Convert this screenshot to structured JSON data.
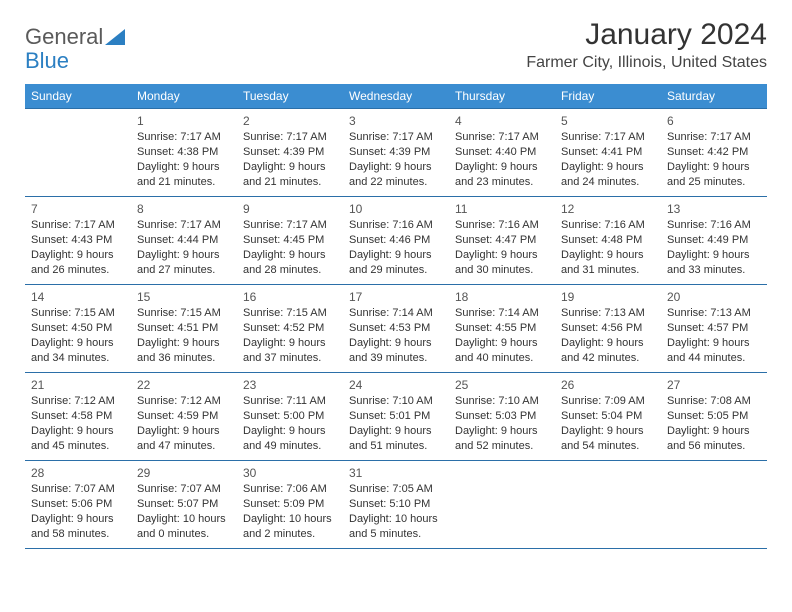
{
  "logo": {
    "text1": "General",
    "text2": "Blue"
  },
  "title": "January 2024",
  "location": "Farmer City, Illinois, United States",
  "colors": {
    "header_bg": "#3b8dd1",
    "header_text": "#ffffff",
    "cell_border": "#2b6fa8",
    "text": "#333333",
    "logo_gray": "#5a5a5a",
    "logo_blue": "#2b7fc2"
  },
  "weekdays": [
    "Sunday",
    "Monday",
    "Tuesday",
    "Wednesday",
    "Thursday",
    "Friday",
    "Saturday"
  ],
  "weeks": [
    [
      null,
      {
        "n": "1",
        "sr": "Sunrise: 7:17 AM",
        "ss": "Sunset: 4:38 PM",
        "d1": "Daylight: 9 hours",
        "d2": "and 21 minutes."
      },
      {
        "n": "2",
        "sr": "Sunrise: 7:17 AM",
        "ss": "Sunset: 4:39 PM",
        "d1": "Daylight: 9 hours",
        "d2": "and 21 minutes."
      },
      {
        "n": "3",
        "sr": "Sunrise: 7:17 AM",
        "ss": "Sunset: 4:39 PM",
        "d1": "Daylight: 9 hours",
        "d2": "and 22 minutes."
      },
      {
        "n": "4",
        "sr": "Sunrise: 7:17 AM",
        "ss": "Sunset: 4:40 PM",
        "d1": "Daylight: 9 hours",
        "d2": "and 23 minutes."
      },
      {
        "n": "5",
        "sr": "Sunrise: 7:17 AM",
        "ss": "Sunset: 4:41 PM",
        "d1": "Daylight: 9 hours",
        "d2": "and 24 minutes."
      },
      {
        "n": "6",
        "sr": "Sunrise: 7:17 AM",
        "ss": "Sunset: 4:42 PM",
        "d1": "Daylight: 9 hours",
        "d2": "and 25 minutes."
      }
    ],
    [
      {
        "n": "7",
        "sr": "Sunrise: 7:17 AM",
        "ss": "Sunset: 4:43 PM",
        "d1": "Daylight: 9 hours",
        "d2": "and 26 minutes."
      },
      {
        "n": "8",
        "sr": "Sunrise: 7:17 AM",
        "ss": "Sunset: 4:44 PM",
        "d1": "Daylight: 9 hours",
        "d2": "and 27 minutes."
      },
      {
        "n": "9",
        "sr": "Sunrise: 7:17 AM",
        "ss": "Sunset: 4:45 PM",
        "d1": "Daylight: 9 hours",
        "d2": "and 28 minutes."
      },
      {
        "n": "10",
        "sr": "Sunrise: 7:16 AM",
        "ss": "Sunset: 4:46 PM",
        "d1": "Daylight: 9 hours",
        "d2": "and 29 minutes."
      },
      {
        "n": "11",
        "sr": "Sunrise: 7:16 AM",
        "ss": "Sunset: 4:47 PM",
        "d1": "Daylight: 9 hours",
        "d2": "and 30 minutes."
      },
      {
        "n": "12",
        "sr": "Sunrise: 7:16 AM",
        "ss": "Sunset: 4:48 PM",
        "d1": "Daylight: 9 hours",
        "d2": "and 31 minutes."
      },
      {
        "n": "13",
        "sr": "Sunrise: 7:16 AM",
        "ss": "Sunset: 4:49 PM",
        "d1": "Daylight: 9 hours",
        "d2": "and 33 minutes."
      }
    ],
    [
      {
        "n": "14",
        "sr": "Sunrise: 7:15 AM",
        "ss": "Sunset: 4:50 PM",
        "d1": "Daylight: 9 hours",
        "d2": "and 34 minutes."
      },
      {
        "n": "15",
        "sr": "Sunrise: 7:15 AM",
        "ss": "Sunset: 4:51 PM",
        "d1": "Daylight: 9 hours",
        "d2": "and 36 minutes."
      },
      {
        "n": "16",
        "sr": "Sunrise: 7:15 AM",
        "ss": "Sunset: 4:52 PM",
        "d1": "Daylight: 9 hours",
        "d2": "and 37 minutes."
      },
      {
        "n": "17",
        "sr": "Sunrise: 7:14 AM",
        "ss": "Sunset: 4:53 PM",
        "d1": "Daylight: 9 hours",
        "d2": "and 39 minutes."
      },
      {
        "n": "18",
        "sr": "Sunrise: 7:14 AM",
        "ss": "Sunset: 4:55 PM",
        "d1": "Daylight: 9 hours",
        "d2": "and 40 minutes."
      },
      {
        "n": "19",
        "sr": "Sunrise: 7:13 AM",
        "ss": "Sunset: 4:56 PM",
        "d1": "Daylight: 9 hours",
        "d2": "and 42 minutes."
      },
      {
        "n": "20",
        "sr": "Sunrise: 7:13 AM",
        "ss": "Sunset: 4:57 PM",
        "d1": "Daylight: 9 hours",
        "d2": "and 44 minutes."
      }
    ],
    [
      {
        "n": "21",
        "sr": "Sunrise: 7:12 AM",
        "ss": "Sunset: 4:58 PM",
        "d1": "Daylight: 9 hours",
        "d2": "and 45 minutes."
      },
      {
        "n": "22",
        "sr": "Sunrise: 7:12 AM",
        "ss": "Sunset: 4:59 PM",
        "d1": "Daylight: 9 hours",
        "d2": "and 47 minutes."
      },
      {
        "n": "23",
        "sr": "Sunrise: 7:11 AM",
        "ss": "Sunset: 5:00 PM",
        "d1": "Daylight: 9 hours",
        "d2": "and 49 minutes."
      },
      {
        "n": "24",
        "sr": "Sunrise: 7:10 AM",
        "ss": "Sunset: 5:01 PM",
        "d1": "Daylight: 9 hours",
        "d2": "and 51 minutes."
      },
      {
        "n": "25",
        "sr": "Sunrise: 7:10 AM",
        "ss": "Sunset: 5:03 PM",
        "d1": "Daylight: 9 hours",
        "d2": "and 52 minutes."
      },
      {
        "n": "26",
        "sr": "Sunrise: 7:09 AM",
        "ss": "Sunset: 5:04 PM",
        "d1": "Daylight: 9 hours",
        "d2": "and 54 minutes."
      },
      {
        "n": "27",
        "sr": "Sunrise: 7:08 AM",
        "ss": "Sunset: 5:05 PM",
        "d1": "Daylight: 9 hours",
        "d2": "and 56 minutes."
      }
    ],
    [
      {
        "n": "28",
        "sr": "Sunrise: 7:07 AM",
        "ss": "Sunset: 5:06 PM",
        "d1": "Daylight: 9 hours",
        "d2": "and 58 minutes."
      },
      {
        "n": "29",
        "sr": "Sunrise: 7:07 AM",
        "ss": "Sunset: 5:07 PM",
        "d1": "Daylight: 10 hours",
        "d2": "and 0 minutes."
      },
      {
        "n": "30",
        "sr": "Sunrise: 7:06 AM",
        "ss": "Sunset: 5:09 PM",
        "d1": "Daylight: 10 hours",
        "d2": "and 2 minutes."
      },
      {
        "n": "31",
        "sr": "Sunrise: 7:05 AM",
        "ss": "Sunset: 5:10 PM",
        "d1": "Daylight: 10 hours",
        "d2": "and 5 minutes."
      },
      null,
      null,
      null
    ]
  ]
}
